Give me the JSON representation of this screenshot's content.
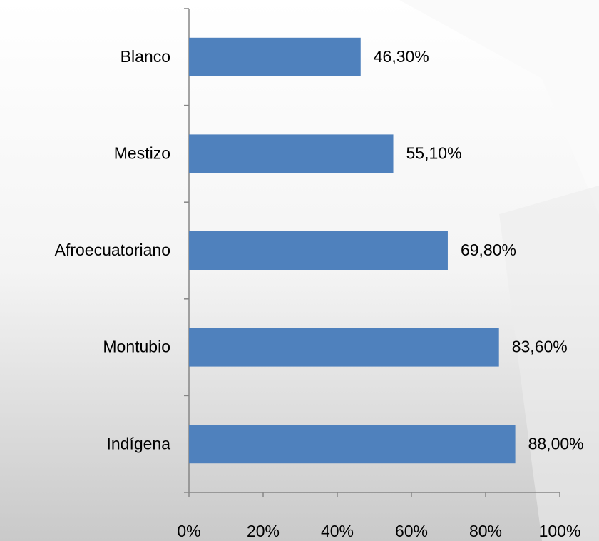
{
  "chart_data": {
    "type": "barh",
    "categories": [
      "Blanco",
      "Mestizo",
      "Afroecuatoriano",
      "Montubio",
      "Indígena"
    ],
    "values": [
      46.3,
      55.1,
      69.8,
      83.6,
      88.0
    ],
    "value_labels": [
      "46,30%",
      "55,10%",
      "69,80%",
      "83,60%",
      "88,00%"
    ],
    "color": "#4f81bd",
    "xlim": [
      0,
      100
    ],
    "xticks": [
      {
        "value": 0,
        "label": "0%"
      },
      {
        "value": 20,
        "label": "20%"
      },
      {
        "value": 40,
        "label": "40%"
      },
      {
        "value": 60,
        "label": "60%"
      },
      {
        "value": 80,
        "label": "80%"
      },
      {
        "value": 100,
        "label": "100%"
      }
    ]
  }
}
